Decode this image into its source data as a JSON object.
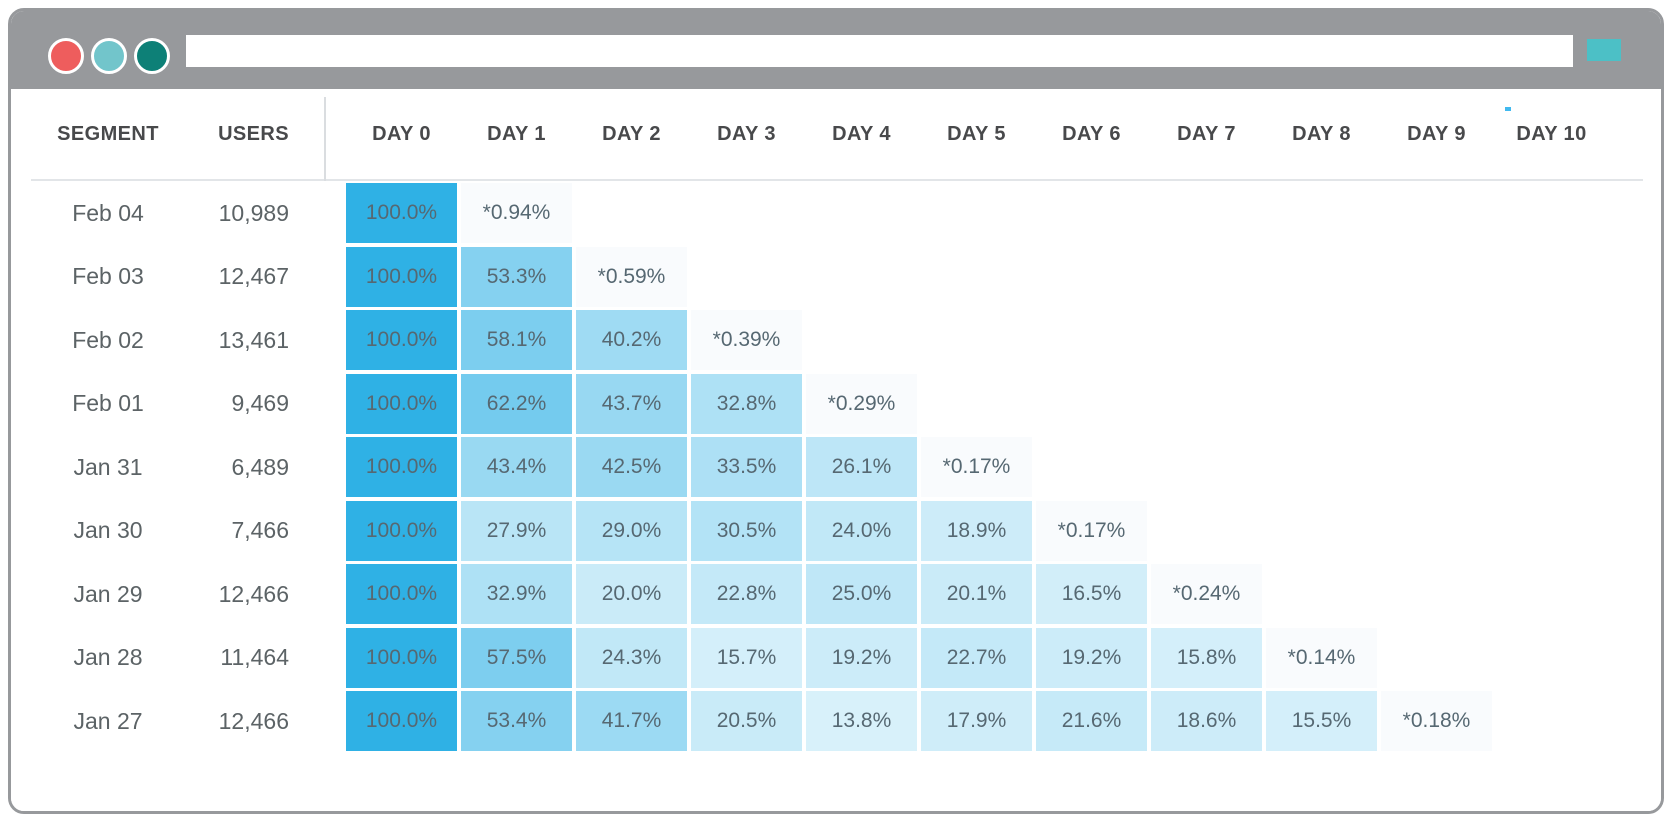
{
  "browser": {
    "chrome_color": "#97999c",
    "traffic_lights": [
      {
        "name": "close",
        "color": "#ee5d5d"
      },
      {
        "name": "minimize",
        "color": "#72c5cb"
      },
      {
        "name": "fullscreen",
        "color": "#0d8077"
      }
    ],
    "url_bar": {
      "value": "",
      "placeholder": ""
    },
    "action_button_color": "#4cc0c6"
  },
  "table": {
    "headers": {
      "segment": "SEGMENT",
      "users": "USERS",
      "days": [
        "DAY 0",
        "DAY 1",
        "DAY 2",
        "DAY 3",
        "DAY 4",
        "DAY 5",
        "DAY 6",
        "DAY 7",
        "DAY 8",
        "DAY 9",
        "DAY 10"
      ]
    },
    "base_cell_color": "#2fb1e5",
    "projected_cell_color": "#f9fbfd",
    "rows": [
      {
        "segment": "Feb 04",
        "users": "10,989",
        "cells": [
          {
            "label": "100.0%",
            "pct": 100
          },
          {
            "label": "*0.94%",
            "pct": 0.94,
            "projected": true
          }
        ]
      },
      {
        "segment": "Feb 03",
        "users": "12,467",
        "cells": [
          {
            "label": "100.0%",
            "pct": 100
          },
          {
            "label": "53.3%",
            "pct": 53.3
          },
          {
            "label": "*0.59%",
            "pct": 0.59,
            "projected": true
          }
        ]
      },
      {
        "segment": "Feb 02",
        "users": "13,461",
        "cells": [
          {
            "label": "100.0%",
            "pct": 100
          },
          {
            "label": "58.1%",
            "pct": 58.1
          },
          {
            "label": "40.2%",
            "pct": 40.2
          },
          {
            "label": "*0.39%",
            "pct": 0.39,
            "projected": true
          }
        ]
      },
      {
        "segment": "Feb 01",
        "users": "9,469",
        "cells": [
          {
            "label": "100.0%",
            "pct": 100
          },
          {
            "label": "62.2%",
            "pct": 62.2
          },
          {
            "label": "43.7%",
            "pct": 43.7
          },
          {
            "label": "32.8%",
            "pct": 32.8
          },
          {
            "label": "*0.29%",
            "pct": 0.29,
            "projected": true
          }
        ]
      },
      {
        "segment": "Jan 31",
        "users": "6,489",
        "cells": [
          {
            "label": "100.0%",
            "pct": 100
          },
          {
            "label": "43.4%",
            "pct": 43.4
          },
          {
            "label": "42.5%",
            "pct": 42.5
          },
          {
            "label": "33.5%",
            "pct": 33.5
          },
          {
            "label": "26.1%",
            "pct": 26.1
          },
          {
            "label": "*0.17%",
            "pct": 0.17,
            "projected": true
          }
        ]
      },
      {
        "segment": "Jan 30",
        "users": "7,466",
        "cells": [
          {
            "label": "100.0%",
            "pct": 100
          },
          {
            "label": "27.9%",
            "pct": 27.9
          },
          {
            "label": "29.0%",
            "pct": 29.0
          },
          {
            "label": "30.5%",
            "pct": 30.5
          },
          {
            "label": "24.0%",
            "pct": 24.0
          },
          {
            "label": "18.9%",
            "pct": 18.9
          },
          {
            "label": "*0.17%",
            "pct": 0.17,
            "projected": true
          }
        ]
      },
      {
        "segment": "Jan 29",
        "users": "12,466",
        "cells": [
          {
            "label": "100.0%",
            "pct": 100
          },
          {
            "label": "32.9%",
            "pct": 32.9
          },
          {
            "label": "20.0%",
            "pct": 20.0
          },
          {
            "label": "22.8%",
            "pct": 22.8
          },
          {
            "label": "25.0%",
            "pct": 25.0
          },
          {
            "label": "20.1%",
            "pct": 20.1
          },
          {
            "label": "16.5%",
            "pct": 16.5
          },
          {
            "label": "*0.24%",
            "pct": 0.24,
            "projected": true
          }
        ]
      },
      {
        "segment": "Jan 28",
        "users": "11,464",
        "cells": [
          {
            "label": "100.0%",
            "pct": 100
          },
          {
            "label": "57.5%",
            "pct": 57.5
          },
          {
            "label": "24.3%",
            "pct": 24.3
          },
          {
            "label": "15.7%",
            "pct": 15.7
          },
          {
            "label": "19.2%",
            "pct": 19.2
          },
          {
            "label": "22.7%",
            "pct": 22.7
          },
          {
            "label": "19.2%",
            "pct": 19.2
          },
          {
            "label": "15.8%",
            "pct": 15.8
          },
          {
            "label": "*0.14%",
            "pct": 0.14,
            "projected": true
          }
        ]
      },
      {
        "segment": "Jan 27",
        "users": "12,466",
        "cells": [
          {
            "label": "100.0%",
            "pct": 100
          },
          {
            "label": "53.4%",
            "pct": 53.4
          },
          {
            "label": "41.7%",
            "pct": 41.7
          },
          {
            "label": "20.5%",
            "pct": 20.5
          },
          {
            "label": "13.8%",
            "pct": 13.8
          },
          {
            "label": "17.9%",
            "pct": 17.9
          },
          {
            "label": "21.6%",
            "pct": 21.6
          },
          {
            "label": "18.6%",
            "pct": 18.6
          },
          {
            "label": "15.5%",
            "pct": 15.5
          },
          {
            "label": "*0.18%",
            "pct": 0.18,
            "projected": true
          }
        ]
      }
    ]
  }
}
